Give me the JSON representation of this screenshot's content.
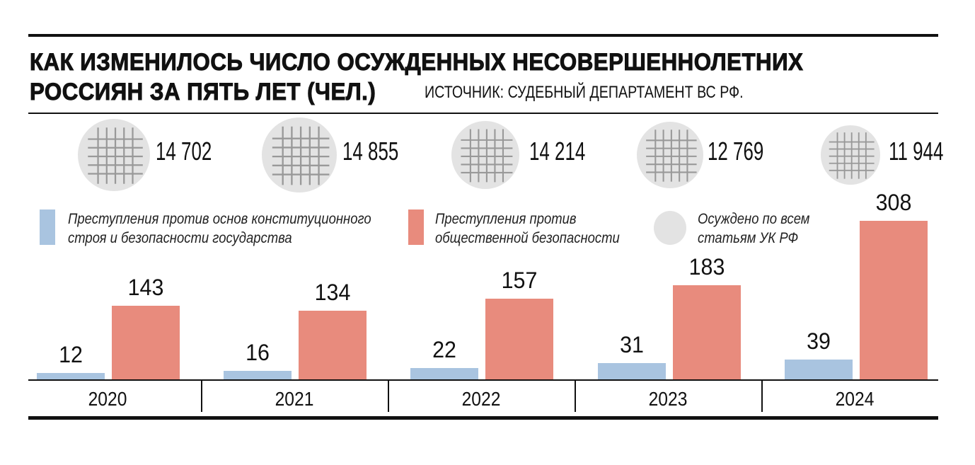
{
  "header": {
    "title_line1": "КАК ИЗМЕНИЛОСЬ ЧИСЛО ОСУЖДЕННЫХ НЕСОВЕРШЕННОЛЕТНИХ",
    "title_line2": "РОССИЯН ЗА ПЯТЬ ЛЕТ (ЧЕЛ.)",
    "source": "ИСТОЧНИК: СУДЕБНЫЙ ДЕПАРТАМЕНТ ВС РФ."
  },
  "totals": [
    {
      "year": "2020",
      "value": "14 702"
    },
    {
      "year": "2021",
      "value": "14 855"
    },
    {
      "year": "2022",
      "value": "14 214"
    },
    {
      "year": "2023",
      "value": "12 769"
    },
    {
      "year": "2024",
      "value": "11 944"
    }
  ],
  "legend": [
    {
      "label_line1": "Преступления против основ конституционного",
      "label_line2": "строя и безопасности государства",
      "color": "#a9c4e0",
      "shape": "rect"
    },
    {
      "label_line1": "Преступления против",
      "label_line2": "общественной безопасности",
      "color": "#e88b7d",
      "shape": "rect"
    },
    {
      "label_line1": "Осуждено по всем",
      "label_line2": "статьям УК РФ",
      "color": "#e3e3e3",
      "shape": "circle"
    }
  ],
  "bars": [
    {
      "year": "2020",
      "blue": "12",
      "red": "143"
    },
    {
      "year": "2021",
      "blue": "16",
      "red": "134"
    },
    {
      "year": "2022",
      "blue": "22",
      "red": "157"
    },
    {
      "year": "2023",
      "blue": "31",
      "red": "183"
    },
    {
      "year": "2024",
      "blue": "39",
      "red": "308"
    }
  ],
  "chart_data": {
    "type": "bar",
    "title": "Как изменилось число осужденных несовершеннолетних россиян за пять лет (чел.)",
    "subtitle": "Источник: Судебный департамент ВС РФ.",
    "categories": [
      "2020",
      "2021",
      "2022",
      "2023",
      "2024"
    ],
    "series": [
      {
        "name": "Преступления против основ конституционного строя и безопасности государства",
        "color": "#a9c4e0",
        "values": [
          12,
          16,
          22,
          31,
          39
        ]
      },
      {
        "name": "Преступления против общественной безопасности",
        "color": "#e88b7d",
        "values": [
          143,
          134,
          157,
          183,
          308
        ]
      },
      {
        "name": "Осуждено по всем статьям УК РФ",
        "color": "#e3e3e3",
        "values": [
          14702,
          14855,
          14214,
          12769,
          11944
        ],
        "display": "circle-icon-with-number"
      }
    ],
    "xlabel": "",
    "ylabel": "",
    "ylim": [
      0,
      308
    ],
    "grid": false,
    "data_labels": true,
    "legend_position": "top"
  }
}
